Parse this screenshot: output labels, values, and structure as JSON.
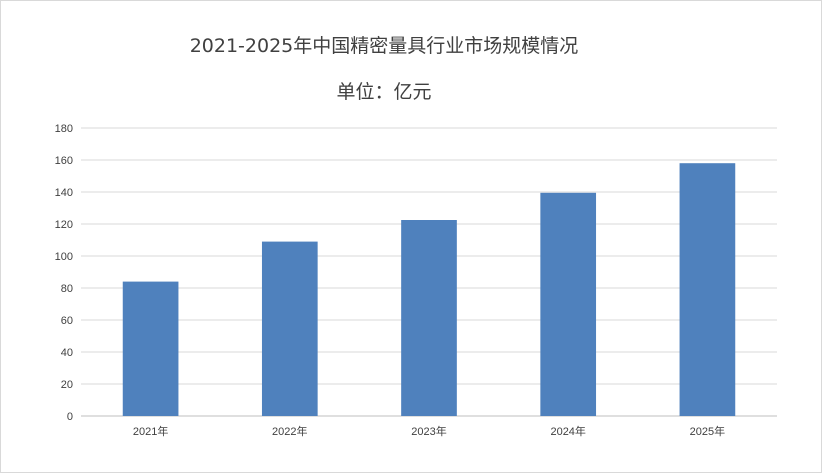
{
  "chart_data": {
    "type": "bar",
    "title": "2021-2025年中国精密量具行业市场规模情况",
    "subtitle": "单位：亿元",
    "categories": [
      "2021年",
      "2022年",
      "2023年",
      "2024年",
      "2025年"
    ],
    "values": [
      84,
      109,
      122.5,
      139.5,
      158
    ],
    "ylim": [
      0,
      180
    ],
    "yticks": [
      0,
      20,
      40,
      60,
      80,
      100,
      120,
      140,
      160,
      180
    ],
    "bar_color": "#4f81bd",
    "grid": true,
    "legend": "none"
  }
}
